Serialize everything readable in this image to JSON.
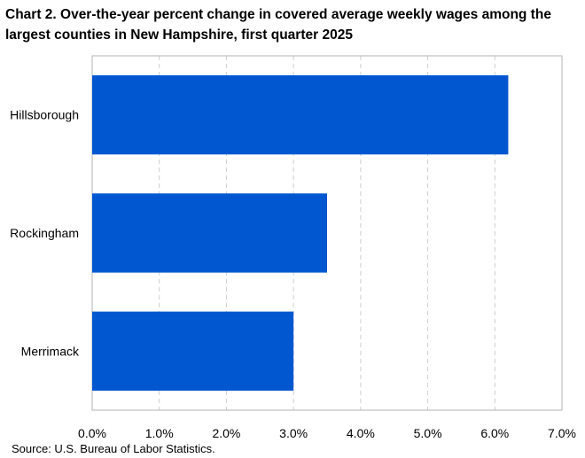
{
  "chart_data": {
    "type": "bar",
    "orientation": "horizontal",
    "title": "Chart 2. Over-the-year percent change in covered average weekly wages among the largest counties in New Hampshire, first quarter 2025",
    "categories": [
      "Hillsborough",
      "Rockingham",
      "Merrimack"
    ],
    "values": [
      6.2,
      3.5,
      3.0
    ],
    "xlim": [
      0,
      7
    ],
    "x_ticks": [
      "0.0%",
      "1.0%",
      "2.0%",
      "3.0%",
      "4.0%",
      "5.0%",
      "6.0%",
      "7.0%"
    ],
    "grid": "vertical dashed",
    "bar_color": "#0057d0"
  },
  "source": "Source: U.S. Bureau of Labor Statistics."
}
